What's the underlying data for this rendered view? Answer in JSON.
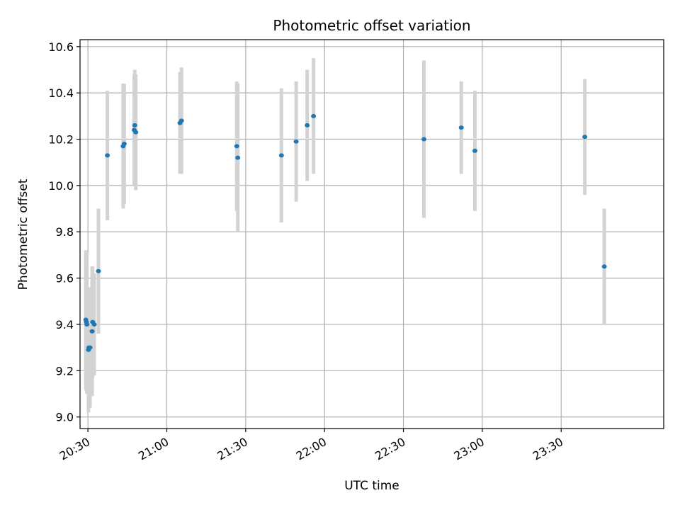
{
  "chart_data": {
    "type": "scatter",
    "title": "Photometric offset variation",
    "xlabel": "UTC time",
    "ylabel": "Photometric offset",
    "xlim": [
      "20:27",
      "24:09"
    ],
    "ylim": [
      8.95,
      10.63
    ],
    "grid": true,
    "x_ticks": [
      "20:30",
      "21:00",
      "21:30",
      "22:00",
      "22:30",
      "23:00",
      "23:30"
    ],
    "y_ticks": [
      "9.0",
      "9.2",
      "9.4",
      "9.6",
      "9.8",
      "10.0",
      "10.2",
      "10.4",
      "10.6"
    ],
    "colors": {
      "point": "#1f77b4",
      "errorbar": "#d3d3d3",
      "grid": "#b0b0b0"
    },
    "series": [
      {
        "points": [
          {
            "x": "20:29:12",
            "y": 9.42,
            "err": 0.3
          },
          {
            "x": "20:29:24",
            "y": 9.41,
            "err": 0.3
          },
          {
            "x": "20:29:36",
            "y": 9.4,
            "err": 0.3
          },
          {
            "x": "20:30:12",
            "y": 9.29,
            "err": 0.27
          },
          {
            "x": "20:30:24",
            "y": 9.3,
            "err": 0.26
          },
          {
            "x": "20:30:48",
            "y": 9.3,
            "err": 0.26
          },
          {
            "x": "20:31:36",
            "y": 9.37,
            "err": 0.28
          },
          {
            "x": "20:31:48",
            "y": 9.41,
            "err": 0.24
          },
          {
            "x": "20:32:24",
            "y": 9.4,
            "err": 0.22
          },
          {
            "x": "20:34:00",
            "y": 9.63,
            "err": 0.27
          },
          {
            "x": "20:37:24",
            "y": 10.13,
            "err": 0.28
          },
          {
            "x": "20:43:24",
            "y": 10.17,
            "err": 0.27
          },
          {
            "x": "20:43:48",
            "y": 10.18,
            "err": 0.26
          },
          {
            "x": "20:47:36",
            "y": 10.24,
            "err": 0.24
          },
          {
            "x": "20:47:48",
            "y": 10.26,
            "err": 0.24
          },
          {
            "x": "20:48:12",
            "y": 10.23,
            "err": 0.25
          },
          {
            "x": "21:05:00",
            "y": 10.27,
            "err": 0.22
          },
          {
            "x": "21:05:36",
            "y": 10.28,
            "err": 0.23
          },
          {
            "x": "21:26:36",
            "y": 10.17,
            "err": 0.28
          },
          {
            "x": "21:27:00",
            "y": 10.12,
            "err": 0.32
          },
          {
            "x": "21:43:36",
            "y": 10.13,
            "err": 0.29
          },
          {
            "x": "21:49:12",
            "y": 10.19,
            "err": 0.26
          },
          {
            "x": "21:53:24",
            "y": 10.26,
            "err": 0.24
          },
          {
            "x": "21:55:48",
            "y": 10.3,
            "err": 0.25
          },
          {
            "x": "22:37:48",
            "y": 10.2,
            "err": 0.34
          },
          {
            "x": "22:52:00",
            "y": 10.25,
            "err": 0.2
          },
          {
            "x": "22:57:12",
            "y": 10.15,
            "err": 0.26
          },
          {
            "x": "23:39:00",
            "y": 10.21,
            "err": 0.25
          },
          {
            "x": "23:46:24",
            "y": 9.65,
            "err": 0.25
          }
        ]
      }
    ]
  }
}
